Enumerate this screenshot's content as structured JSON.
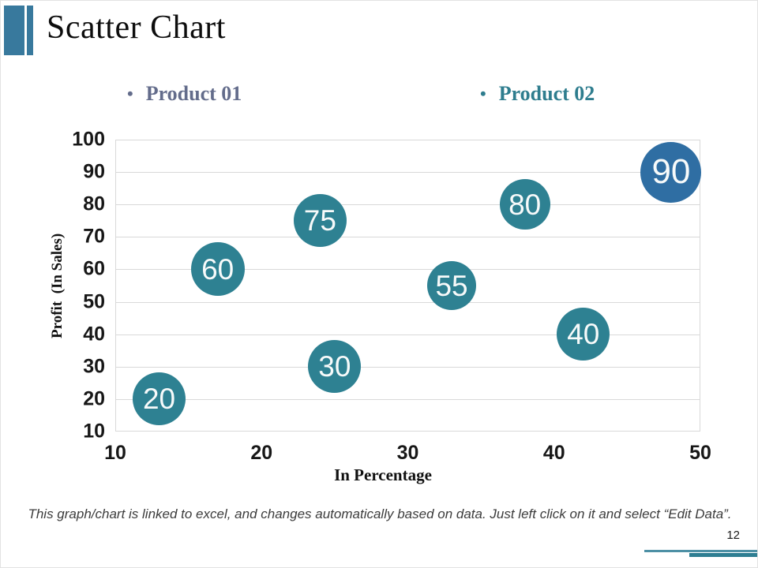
{
  "slide": {
    "title": "Scatter Chart",
    "page_number": "12",
    "footer_note": "This graph/chart is linked to excel, and changes automatically based on data. Just left click on it and select “Edit Data”."
  },
  "legend": {
    "items": [
      {
        "label": "Product 01",
        "bullet": "•",
        "color": "#636c8b"
      },
      {
        "label": "Product 02",
        "bullet": "•",
        "color": "#2e7d8e"
      }
    ]
  },
  "chart_data": {
    "type": "scatter",
    "title": "",
    "xlabel": "In Percentage",
    "ylabel": "Profit  (In Sales)",
    "xlim": [
      10,
      50
    ],
    "ylim": [
      10,
      100
    ],
    "x_ticks": [
      10,
      20,
      30,
      40,
      50
    ],
    "y_ticks": [
      10,
      20,
      30,
      40,
      50,
      60,
      70,
      80,
      90,
      100
    ],
    "grid": "horizontal-only",
    "legend_position": "top",
    "series": [
      {
        "name": "Product 01",
        "color": "#2f6ea3",
        "points": [
          {
            "x": 48,
            "y": 90,
            "label": "90",
            "size": 77,
            "label_size": 44
          }
        ]
      },
      {
        "name": "Product 02",
        "color": "#2e8192",
        "points": [
          {
            "x": 13,
            "y": 20,
            "label": "20",
            "size": 67,
            "label_size": 37
          },
          {
            "x": 17,
            "y": 60,
            "label": "60",
            "size": 68,
            "label_size": 37
          },
          {
            "x": 24,
            "y": 75,
            "label": "75",
            "size": 67,
            "label_size": 37
          },
          {
            "x": 25,
            "y": 30,
            "label": "30",
            "size": 67,
            "label_size": 37
          },
          {
            "x": 33,
            "y": 55,
            "label": "55",
            "size": 62,
            "label_size": 37
          },
          {
            "x": 38,
            "y": 80,
            "label": "80",
            "size": 64,
            "label_size": 37
          },
          {
            "x": 42,
            "y": 40,
            "label": "40",
            "size": 67,
            "label_size": 37
          }
        ]
      }
    ]
  },
  "theme": {
    "accent_bar": "#38799d",
    "gridline": "#d9d9d9",
    "footer_line_light": "#4d90a5",
    "footer_line_dark": "#2e7e92"
  }
}
